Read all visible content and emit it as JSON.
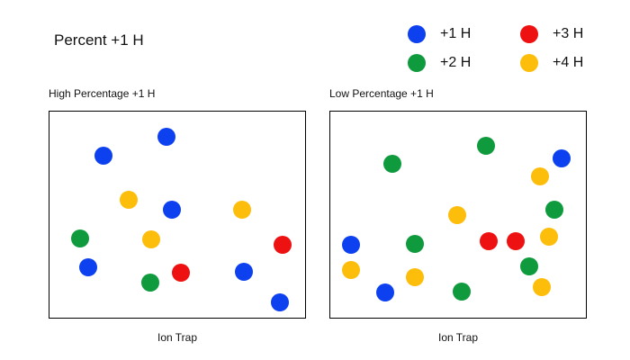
{
  "title": "Percent +1 H",
  "legend": [
    {
      "label": "+1 H",
      "color": "#0d41ef"
    },
    {
      "label": "+2 H",
      "color": "#0f9b3d"
    },
    {
      "label": "+3 H",
      "color": "#ee1111"
    },
    {
      "label": "+4 H",
      "color": "#fdbd0b"
    }
  ],
  "panels": [
    {
      "title": "High Percentage +1 H",
      "caption": "Ion Trap",
      "ions": [
        {
          "species": 0
        },
        {
          "species": 0
        },
        {
          "species": 3
        },
        {
          "species": 0
        },
        {
          "species": 3
        },
        {
          "species": 1
        },
        {
          "species": 3
        },
        {
          "species": 2
        },
        {
          "species": 0
        },
        {
          "species": 2
        },
        {
          "species": 1
        },
        {
          "species": 0
        },
        {
          "species": 0
        }
      ]
    },
    {
      "title": "Low Percentage +1 H",
      "caption": "Ion Trap",
      "ions": [
        {
          "species": 1
        },
        {
          "species": 1
        },
        {
          "species": 0
        },
        {
          "species": 3
        },
        {
          "species": 3
        },
        {
          "species": 1
        },
        {
          "species": 0
        },
        {
          "species": 1
        },
        {
          "species": 2
        },
        {
          "species": 2
        },
        {
          "species": 3
        },
        {
          "species": 3
        },
        {
          "species": 1
        },
        {
          "species": 3
        },
        {
          "species": 0
        },
        {
          "species": 3
        },
        {
          "species": 1
        }
      ]
    }
  ]
}
